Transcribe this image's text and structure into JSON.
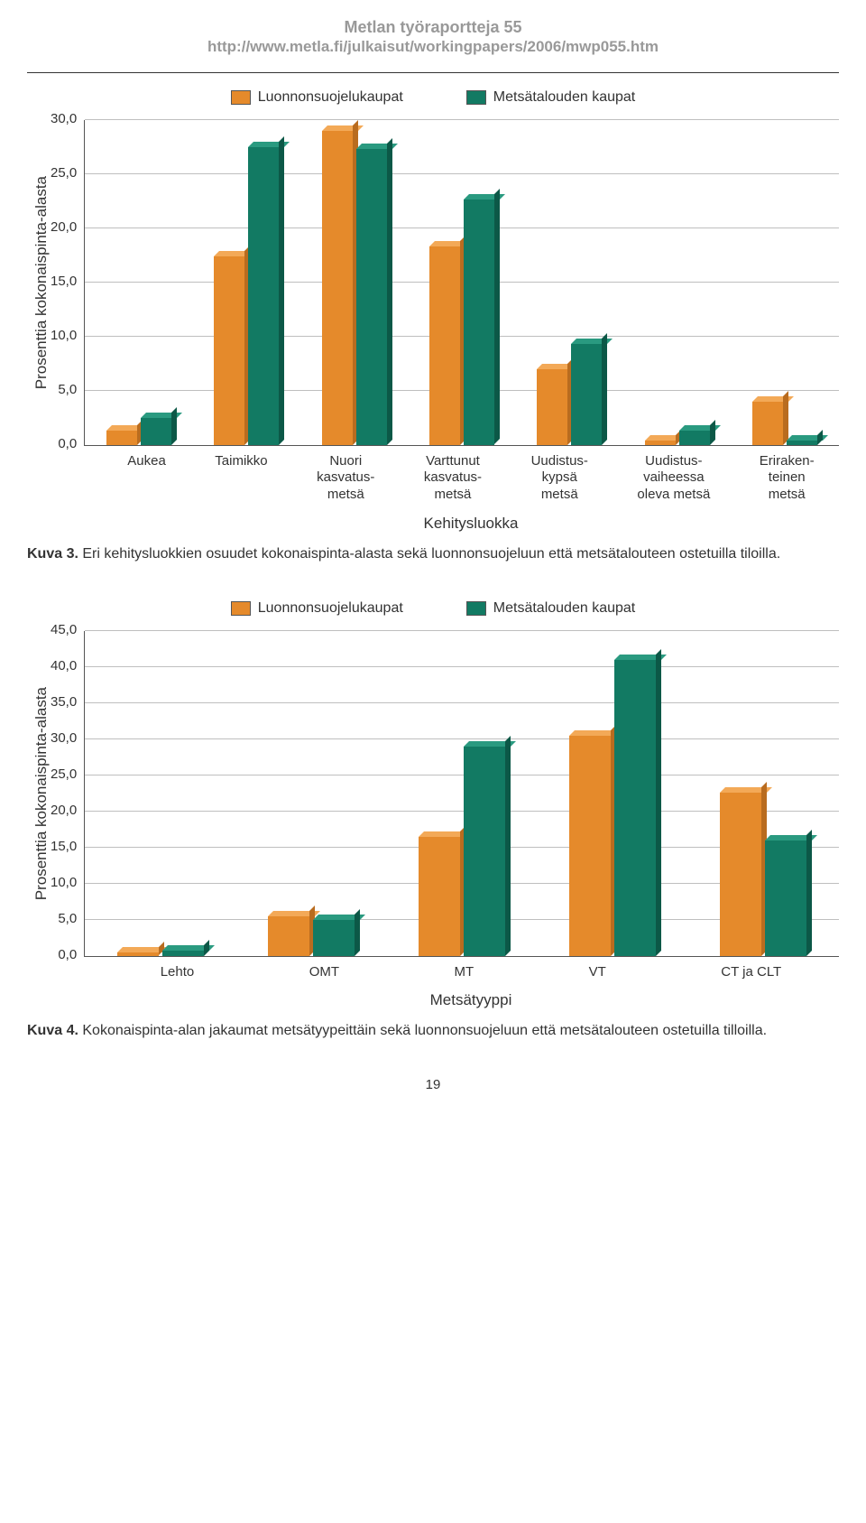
{
  "header": {
    "title": "Metlan työraportteja 55",
    "url": "http://www.metla.fi/julkaisut/workingpapers/2006/mwp055.htm"
  },
  "legend": {
    "items": [
      {
        "label": "Luonnonsuojelukaupat",
        "color": "#e58a2b"
      },
      {
        "label": "Metsätalouden kaupat",
        "color": "#127a63"
      }
    ]
  },
  "colors": {
    "series1_fill": "#e58a2b",
    "series1_top": "#f3a957",
    "series1_side": "#b96c1f",
    "series2_fill": "#127a63",
    "series2_top": "#2a9a80",
    "series2_side": "#0c5847",
    "grid": "#bfbfbf",
    "axis": "#555555",
    "background": "#ffffff"
  },
  "chart1": {
    "type": "bar",
    "y_label": "Prosenttia kokonaispinta-alasta",
    "x_title": "Kehitysluokka",
    "ymax": 30,
    "ytick_step": 5,
    "yticks": [
      "30,0",
      "25,0",
      "20,0",
      "15,0",
      "10,0",
      "5,0",
      "0,0"
    ],
    "categories": [
      "Aukea",
      "Taimikko",
      "Nuori\nkasvatus-\nmetsä",
      "Varttunut\nkasvatus-\nmetsä",
      "Uudistus-\nkypsä\nmetsä",
      "Uudistus-\nvaiheessa\noleva metsä",
      "Eriraken-\nteinen\nmetsä"
    ],
    "series": [
      {
        "name": "Luonnonsuojelukaupat",
        "values": [
          1.3,
          17.4,
          29.0,
          18.3,
          7.0,
          0.4,
          4.0
        ]
      },
      {
        "name": "Metsätalouden kaupat",
        "values": [
          2.5,
          27.5,
          27.3,
          22.6,
          9.3,
          1.3,
          0.4
        ]
      }
    ],
    "caption_bold": "Kuva 3.",
    "caption_text": " Eri kehitysluokkien osuudet kokonaispinta-alasta sekä luonnonsuojeluun että metsätalouteen ostetuilla tiloilla."
  },
  "chart2": {
    "type": "bar",
    "y_label": "Prosenttia kokonaispinta-alasta",
    "x_title": "Metsätyyppi",
    "ymax": 45,
    "ytick_step": 5,
    "yticks": [
      "45,0",
      "40,0",
      "35,0",
      "30,0",
      "25,0",
      "20,0",
      "15,0",
      "10,0",
      "5,0",
      "0,0"
    ],
    "categories": [
      "Lehto",
      "OMT",
      "MT",
      "VT",
      "CT ja CLT"
    ],
    "series": [
      {
        "name": "Luonnonsuojelukaupat",
        "values": [
          0.4,
          5.5,
          16.5,
          30.5,
          22.6
        ]
      },
      {
        "name": "Metsätalouden kaupat",
        "values": [
          0.7,
          5.0,
          29.0,
          41.0,
          16.0
        ]
      }
    ],
    "caption_bold": "Kuva 4.",
    "caption_text": " Kokonaispinta-alan jakaumat metsätyypeittäin sekä luonnonsuojeluun että metsätalouteen ostetuilla tilloilla."
  },
  "footer": {
    "page_number": "19"
  }
}
